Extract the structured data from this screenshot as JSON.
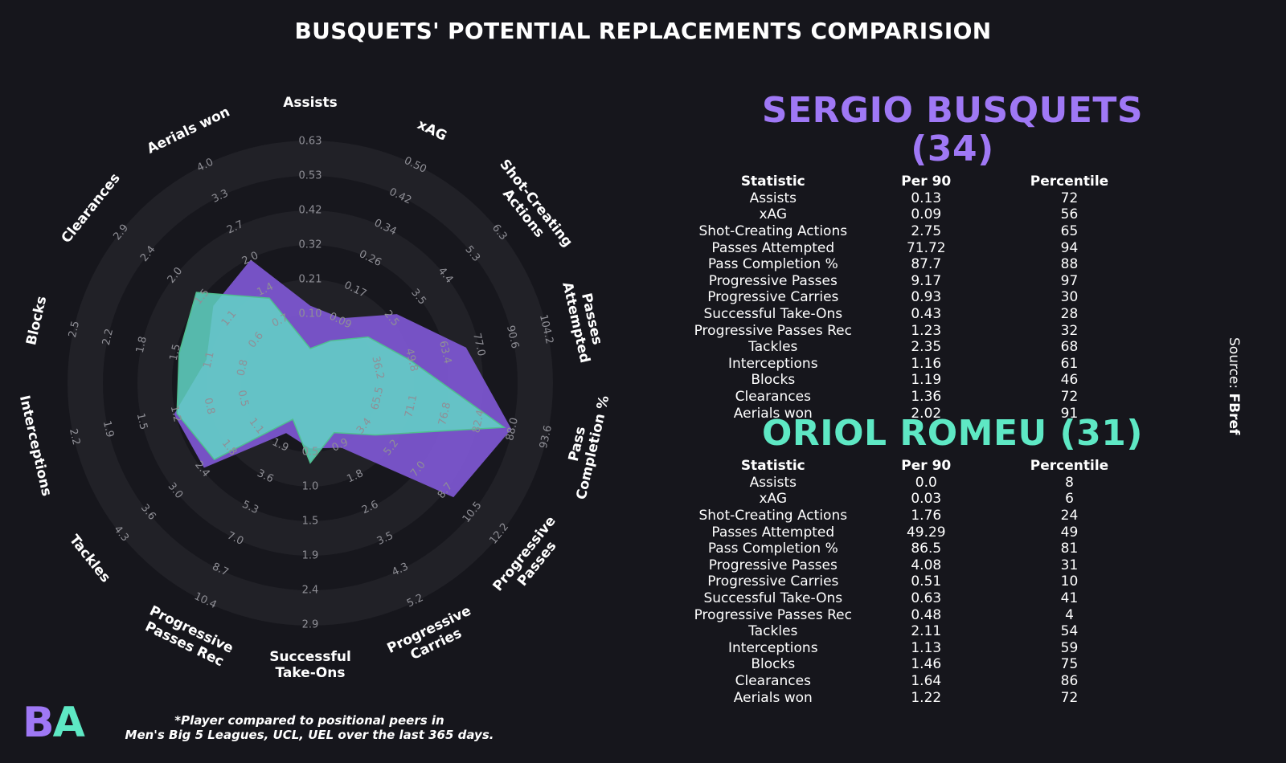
{
  "title": "BUSQUETS' POTENTIAL REPLACEMENTS COMPARISION",
  "source": {
    "prefix": "Source: ",
    "name": "FBref"
  },
  "logo": {
    "part1": "B",
    "part2": "A"
  },
  "footnote": {
    "line1": "*Player compared to positional peers in",
    "line2": "Men's Big 5 Leagues, UCL, UEL over the last 365 days."
  },
  "table_headers": {
    "statistic": "Statistic",
    "per90": "Per 90",
    "percentile": "Percentile"
  },
  "colors": {
    "background": "#16161c",
    "ring_light": "#212127",
    "ring_dark": "#17171d",
    "player1": "#9f78f5",
    "player2": "#5ee8c4",
    "player1_fill": "#7f58d4",
    "player2_fill": "#62d6c6",
    "player2_edge": "#4fbf90",
    "tick_label": "#8f8f96"
  },
  "players": [
    {
      "name": "SERGIO BUSQUETS (34)",
      "stats": [
        {
          "statistic": "Assists",
          "per90": "0.13",
          "percentile": "72"
        },
        {
          "statistic": "xAG",
          "per90": "0.09",
          "percentile": "56"
        },
        {
          "statistic": "Shot-Creating Actions",
          "per90": "2.75",
          "percentile": "65"
        },
        {
          "statistic": "Passes Attempted",
          "per90": "71.72",
          "percentile": "94"
        },
        {
          "statistic": "Pass Completion %",
          "per90": "87.7",
          "percentile": "88"
        },
        {
          "statistic": "Progressive Passes",
          "per90": "9.17",
          "percentile": "97"
        },
        {
          "statistic": "Progressive Carries",
          "per90": "0.93",
          "percentile": "30"
        },
        {
          "statistic": "Successful Take-Ons",
          "per90": "0.43",
          "percentile": "28"
        },
        {
          "statistic": "Progressive Passes Rec",
          "per90": "1.23",
          "percentile": "32"
        },
        {
          "statistic": "Tackles",
          "per90": "2.35",
          "percentile": "68"
        },
        {
          "statistic": "Interceptions",
          "per90": "1.16",
          "percentile": "61"
        },
        {
          "statistic": "Blocks",
          "per90": "1.19",
          "percentile": "46"
        },
        {
          "statistic": "Clearances",
          "per90": "1.36",
          "percentile": "72"
        },
        {
          "statistic": "Aerials won",
          "per90": "2.02",
          "percentile": "91"
        }
      ]
    },
    {
      "name": "ORIOL ROMEU (31)",
      "stats": [
        {
          "statistic": "Assists",
          "per90": "0.0",
          "percentile": "8"
        },
        {
          "statistic": "xAG",
          "per90": "0.03",
          "percentile": "6"
        },
        {
          "statistic": "Shot-Creating Actions",
          "per90": "1.76",
          "percentile": "24"
        },
        {
          "statistic": "Passes Attempted",
          "per90": "49.29",
          "percentile": "49"
        },
        {
          "statistic": "Pass Completion %",
          "per90": "86.5",
          "percentile": "81"
        },
        {
          "statistic": "Progressive Passes",
          "per90": "4.08",
          "percentile": "31"
        },
        {
          "statistic": "Progressive Carries",
          "per90": "0.51",
          "percentile": "10"
        },
        {
          "statistic": "Successful Take-Ons",
          "per90": "0.63",
          "percentile": "41"
        },
        {
          "statistic": "Progressive Passes Rec",
          "per90": "0.48",
          "percentile": "4"
        },
        {
          "statistic": "Tackles",
          "per90": "2.11",
          "percentile": "54"
        },
        {
          "statistic": "Interceptions",
          "per90": "1.13",
          "percentile": "59"
        },
        {
          "statistic": "Blocks",
          "per90": "1.46",
          "percentile": "75"
        },
        {
          "statistic": "Clearances",
          "per90": "1.64",
          "percentile": "86"
        },
        {
          "statistic": "Aerials won",
          "per90": "1.22",
          "percentile": "72"
        }
      ]
    }
  ],
  "chart_data": {
    "type": "radar",
    "title": "BUSQUETS' POTENTIAL REPLACEMENTS COMPARISION",
    "axes": [
      {
        "label": [
          "Assists"
        ],
        "ticks": [
          "0.10",
          "0.21",
          "0.32",
          "0.42",
          "0.53",
          "0.63"
        ],
        "range": [
          0,
          0.63
        ]
      },
      {
        "label": [
          "xAG"
        ],
        "ticks": [
          "0.09",
          "0.17",
          "0.26",
          "0.34",
          "0.42",
          "0.50"
        ],
        "range": [
          0,
          0.5
        ]
      },
      {
        "label": [
          "Shot-Creating",
          "Actions"
        ],
        "ticks": [
          "2.5",
          "3.5",
          "4.4",
          "5.3",
          "6.3"
        ],
        "range": [
          0.7,
          6.3
        ]
      },
      {
        "label": [
          "Passes",
          "Attempted"
        ],
        "ticks": [
          "36.2",
          "49.8",
          "63.4",
          "77.0",
          "90.6",
          "104.2"
        ],
        "range": [
          22.6,
          104.2
        ]
      },
      {
        "label": [
          "Pass",
          "Completion %"
        ],
        "ticks": [
          "65.5",
          "71.1",
          "76.8",
          "82.4",
          "88.0",
          "93.6"
        ],
        "range": [
          59.9,
          93.6
        ]
      },
      {
        "label": [
          "Progressive",
          "Passes"
        ],
        "ticks": [
          "3.4",
          "5.2",
          "7.0",
          "8.7",
          "10.5",
          "12.2"
        ],
        "range": [
          1.6,
          12.2
        ]
      },
      {
        "label": [
          "Progressive",
          "Carries"
        ],
        "ticks": [
          "0.9",
          "1.8",
          "2.6",
          "3.5",
          "4.3",
          "5.2"
        ],
        "range": [
          0.0,
          5.2
        ]
      },
      {
        "label": [
          "Successful",
          "Take-Ons"
        ],
        "ticks": [
          "0.5",
          "1.0",
          "1.5",
          "1.9",
          "2.4",
          "2.9"
        ],
        "range": [
          0.0,
          2.9
        ]
      },
      {
        "label": [
          "Progressive",
          "Passes Rec"
        ],
        "ticks": [
          "1.9",
          "3.6",
          "5.3",
          "7.0",
          "8.7",
          "10.4"
        ],
        "range": [
          0.2,
          10.4
        ]
      },
      {
        "label": [
          "Tackles"
        ],
        "ticks": [
          "1.1",
          "1.8",
          "2.4",
          "3.0",
          "3.6",
          "4.3"
        ],
        "range": [
          0.5,
          4.3
        ]
      },
      {
        "label": [
          "Interceptions"
        ],
        "ticks": [
          "0.5",
          "0.8",
          "1.2",
          "1.5",
          "1.9",
          "2.2"
        ],
        "range": [
          0.1,
          2.2
        ]
      },
      {
        "label": [
          "Blocks"
        ],
        "ticks": [
          "0.8",
          "1.1",
          "1.5",
          "1.8",
          "2.2",
          "2.5"
        ],
        "range": [
          0.5,
          2.5
        ]
      },
      {
        "label": [
          "Clearances"
        ],
        "ticks": [
          "0.6",
          "1.1",
          "1.5",
          "2.0",
          "2.4",
          "2.9"
        ],
        "range": [
          0.2,
          2.9
        ]
      },
      {
        "label": [
          "Aerials won"
        ],
        "ticks": [
          "0.7",
          "1.4",
          "2.0",
          "2.7",
          "3.3",
          "4.0"
        ],
        "range": [
          0.1,
          4.0
        ]
      }
    ],
    "series": [
      {
        "values": [
          0.13,
          0.09,
          2.75,
          71.72,
          87.7,
          9.17,
          0.93,
          0.43,
          1.23,
          2.35,
          1.16,
          1.19,
          1.36,
          2.02
        ]
      },
      {
        "values": [
          0.0,
          0.03,
          1.76,
          49.29,
          86.5,
          4.08,
          0.51,
          0.63,
          0.48,
          2.11,
          1.13,
          1.46,
          1.64,
          1.22
        ]
      }
    ]
  }
}
